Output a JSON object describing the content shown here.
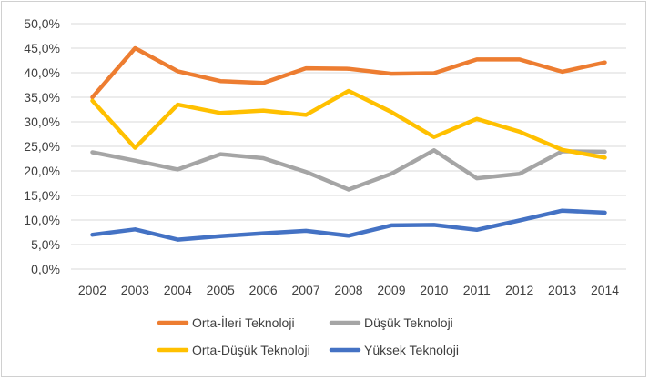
{
  "chart_data": {
    "type": "line",
    "title": "",
    "xlabel": "",
    "ylabel": "",
    "ylim": [
      0,
      50
    ],
    "y_tick_labels": [
      "0,0%",
      "5,0%",
      "10,0%",
      "15,0%",
      "20,0%",
      "25,0%",
      "30,0%",
      "35,0%",
      "40,0%",
      "45,0%",
      "50,0%"
    ],
    "grid": "horizontal",
    "legend_position": "bottom",
    "categories": [
      "2002",
      "2003",
      "2004",
      "2005",
      "2006",
      "2007",
      "2008",
      "2009",
      "2010",
      "2011",
      "2012",
      "2013",
      "2014"
    ],
    "series": [
      {
        "name": "Orta-İleri Teknoloji",
        "color": "#ED7D31",
        "values": [
          35.0,
          45.0,
          40.3,
          38.3,
          37.9,
          40.9,
          40.8,
          39.8,
          39.9,
          42.7,
          42.7,
          40.2,
          42.1
        ]
      },
      {
        "name": "Düşük Teknoloji",
        "color": "#A5A5A5",
        "values": [
          23.8,
          22.1,
          20.3,
          23.4,
          22.6,
          19.8,
          16.2,
          19.4,
          24.2,
          18.5,
          19.4,
          24.0,
          23.9
        ]
      },
      {
        "name": "Orta-Düşük Teknoloji",
        "color": "#FFC000",
        "values": [
          34.3,
          24.7,
          33.5,
          31.8,
          32.3,
          31.4,
          36.3,
          32.0,
          26.9,
          30.6,
          28.0,
          24.3,
          22.7
        ]
      },
      {
        "name": "Yüksek Teknoloji",
        "color": "#4472C4",
        "values": [
          7.0,
          8.1,
          6.0,
          6.7,
          7.3,
          7.8,
          6.8,
          8.9,
          9.0,
          8.0,
          9.9,
          11.9,
          11.5
        ]
      }
    ]
  }
}
